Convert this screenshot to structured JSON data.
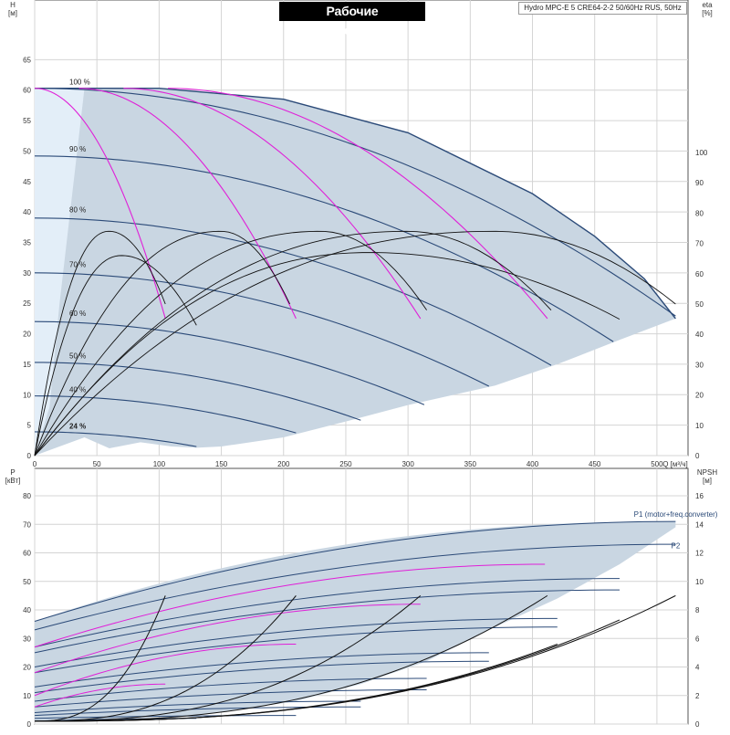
{
  "title": "Рабочие характеристики",
  "subtitle": "Hydro MPC-E 5 CRE64-2-2 50/60Hz RUS, 50Hz",
  "colors": {
    "envelope": "#c9d6e2",
    "envelope_light": "#e3eef8",
    "curve_blue": "#2b4a78",
    "magenta": "#e020d8",
    "black": "#111111",
    "grid": "#d4d4d4",
    "axis": "#555555"
  },
  "chart_data": [
    {
      "type": "line",
      "panel": "head",
      "y_axis_label": "H",
      "y_axis_unit": "[м]",
      "y2_axis_label": "eta",
      "y2_axis_unit": "[%]",
      "x_axis_label": "Q [м³/ч]",
      "xlim": [
        0,
        525
      ],
      "ylim": [
        0,
        70
      ],
      "y2lim": [
        0,
        100
      ],
      "x_ticks": [
        "0",
        "50",
        "100",
        "150",
        "200",
        "250",
        "300",
        "350",
        "400",
        "450",
        "500"
      ],
      "y_ticks": [
        "0",
        "5",
        "10",
        "15",
        "20",
        "25",
        "30",
        "35",
        "40",
        "45",
        "50",
        "55",
        "60",
        "65"
      ],
      "y2_ticks": [
        "0",
        "10",
        "20",
        "30",
        "40",
        "50",
        "60",
        "70",
        "80",
        "90",
        "100"
      ],
      "grid": true,
      "speed_labels": [
        {
          "text": "100 %",
          "h": 60.5,
          "bold": false
        },
        {
          "text": "90 %",
          "h": 49.5,
          "bold": false
        },
        {
          "text": "80 %",
          "h": 39.5,
          "bold": false
        },
        {
          "text": "70 %",
          "h": 30.5,
          "bold": false
        },
        {
          "text": "60 %",
          "h": 22.5,
          "bold": false
        },
        {
          "text": "50 %",
          "h": 15.5,
          "bold": false
        },
        {
          "text": "40 %",
          "h": 10.0,
          "bold": false
        },
        {
          "text": "24 %",
          "h": 4.0,
          "bold": true
        }
      ],
      "envelope": {
        "upper": [
          [
            0,
            60.3
          ],
          [
            100,
            60.3
          ],
          [
            200,
            58.5
          ],
          [
            300,
            53
          ],
          [
            400,
            43
          ],
          [
            450,
            36
          ],
          [
            490,
            29
          ],
          [
            515,
            22.5
          ]
        ],
        "lower": [
          [
            515,
            22.5
          ],
          [
            470,
            19
          ],
          [
            420,
            15
          ],
          [
            370,
            11.5
          ],
          [
            300,
            8.3
          ],
          [
            250,
            5.6
          ],
          [
            200,
            3
          ],
          [
            150,
            1.5
          ],
          [
            130,
            1.3
          ],
          [
            110,
            1.5
          ],
          [
            85,
            2.2
          ],
          [
            60,
            1.2
          ],
          [
            40,
            3
          ],
          [
            20,
            1.5
          ],
          [
            0,
            0
          ]
        ]
      },
      "pump_curves": [
        {
          "speed": "100 %",
          "h0": 60.3,
          "qmax": 515
        },
        {
          "speed": "90 %",
          "h0": 49.2,
          "qmax": 465
        },
        {
          "speed": "80 %",
          "h0": 39.0,
          "qmax": 415
        },
        {
          "speed": "70 %",
          "h0": 30.0,
          "qmax": 365
        },
        {
          "speed": "60 %",
          "h0": 22.0,
          "qmax": 313
        },
        {
          "speed": "50 %",
          "h0": 15.3,
          "qmax": 262
        },
        {
          "speed": "40 %",
          "h0": 9.8,
          "qmax": 210
        },
        {
          "speed": "24 %",
          "h0": 3.9,
          "qmax": 130
        }
      ],
      "magenta_curves": [
        {
          "qmax": 105,
          "h_end": 22.5
        },
        {
          "qmax": 210,
          "h_end": 22.5
        },
        {
          "qmax": 310,
          "h_end": 22.5
        },
        {
          "qmax": 412,
          "h_end": 22.5
        }
      ],
      "efficiency_curves": [
        {
          "peak": 74,
          "qpeak": 60,
          "qend": 105,
          "end_eta": 50
        },
        {
          "peak": 74,
          "qpeak": 150,
          "qend": 205,
          "end_eta": 50
        },
        {
          "peak": 74,
          "qpeak": 230,
          "qend": 315,
          "end_eta": 48
        },
        {
          "peak": 74,
          "qpeak": 300,
          "qend": 415,
          "end_eta": 48
        },
        {
          "peak": 74,
          "qpeak": 370,
          "qend": 515,
          "end_eta": 50
        },
        {
          "peak": 67,
          "qpeak": 270,
          "qend": 470,
          "end_eta": 45
        },
        {
          "peak": 66,
          "qpeak": 70,
          "qend": 130,
          "end_eta": 43
        }
      ]
    },
    {
      "type": "line",
      "panel": "power",
      "y_axis_label": "P",
      "y_axis_unit": "[кВт]",
      "y2_axis_label": "NPSH",
      "y2_axis_unit": "[м]",
      "xlim": [
        0,
        525
      ],
      "ylim": [
        0,
        80
      ],
      "y2lim": [
        0,
        16
      ],
      "y_ticks": [
        "0",
        "10",
        "20",
        "30",
        "40",
        "50",
        "60",
        "70",
        "80"
      ],
      "y2_ticks": [
        "0",
        "2",
        "4",
        "6",
        "8",
        "10",
        "12",
        "14",
        "16"
      ],
      "grid": true,
      "series_labels": [
        {
          "text": "P1 (motor+freq.converter)",
          "q": 480,
          "p": 72
        },
        {
          "text": "P2",
          "q": 510,
          "p": 61
        }
      ],
      "power_curves": [
        {
          "p0": 36,
          "pmax": 71,
          "qmax": 515
        },
        {
          "p0": 33,
          "pmax": 63,
          "qmax": 515
        },
        {
          "p0": 27,
          "pmax": 51,
          "qmax": 470
        },
        {
          "p0": 25,
          "pmax": 47,
          "qmax": 470
        },
        {
          "p0": 20,
          "pmax": 37,
          "qmax": 420
        },
        {
          "p0": 18,
          "pmax": 34,
          "qmax": 420
        },
        {
          "p0": 13,
          "pmax": 25,
          "qmax": 365
        },
        {
          "p0": 11,
          "pmax": 22,
          "qmax": 365
        },
        {
          "p0": 8,
          "pmax": 16,
          "qmax": 315
        },
        {
          "p0": 6,
          "pmax": 12,
          "qmax": 315
        },
        {
          "p0": 4,
          "pmax": 8,
          "qmax": 262
        },
        {
          "p0": 3,
          "pmax": 6,
          "qmax": 262
        },
        {
          "p0": 2,
          "pmax": 3,
          "qmax": 210
        },
        {
          "p0": 1,
          "pmax": 2,
          "qmax": 130
        }
      ],
      "magenta_power": [
        {
          "p0": 27,
          "pmax": 56,
          "qmax": 410
        },
        {
          "p0": 18,
          "pmax": 42,
          "qmax": 310
        },
        {
          "p0": 10,
          "pmax": 28,
          "qmax": 210
        },
        {
          "p0": 6,
          "pmax": 14,
          "qmax": 105
        }
      ],
      "npsh_curves": [
        {
          "q_end": 105,
          "npsh_end": 9
        },
        {
          "q_end": 210,
          "npsh_end": 9
        },
        {
          "q_end": 310,
          "npsh_end": 9
        },
        {
          "q_end": 412,
          "npsh_end": 9
        },
        {
          "q_end": 515,
          "npsh_end": 9
        },
        {
          "q_end": 470,
          "npsh_end": 7.3
        },
        {
          "q_end": 420,
          "npsh_end": 5.6
        }
      ]
    }
  ]
}
